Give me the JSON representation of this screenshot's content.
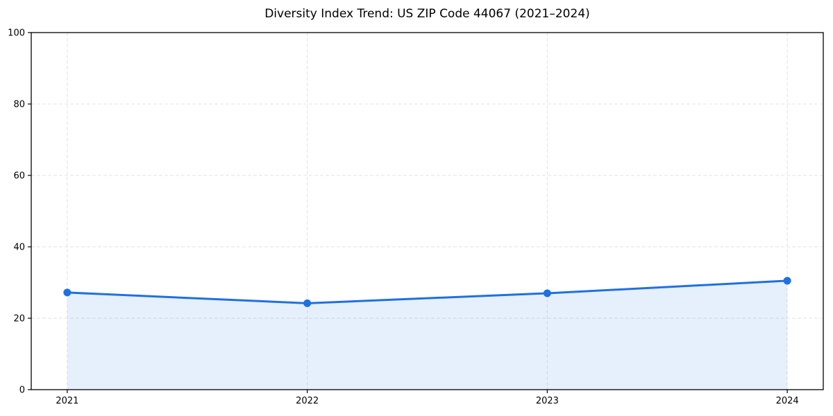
{
  "chart_data": {
    "type": "area",
    "title": "Diversity Index Trend: US ZIP Code 44067 (2021–2024)",
    "x": [
      "2021",
      "2022",
      "2023",
      "2024"
    ],
    "series": [
      {
        "name": "Diversity Index",
        "values": [
          27.2,
          24.2,
          27.0,
          30.5
        ]
      }
    ],
    "xlabel": "",
    "ylabel": "",
    "ylim": [
      0,
      100
    ],
    "yticks": [
      0,
      20,
      40,
      60,
      80,
      100
    ],
    "grid": true,
    "grid_style": "dashed",
    "legend": false,
    "marker": "circle",
    "colors": {
      "line": "#1f70e0",
      "marker": "#1f70e0",
      "fill": "#1f70e0",
      "fill_opacity": 0.11,
      "grid": "#e3e3e3",
      "axis": "#000000",
      "text": "#000000",
      "background": "#ffffff"
    }
  }
}
